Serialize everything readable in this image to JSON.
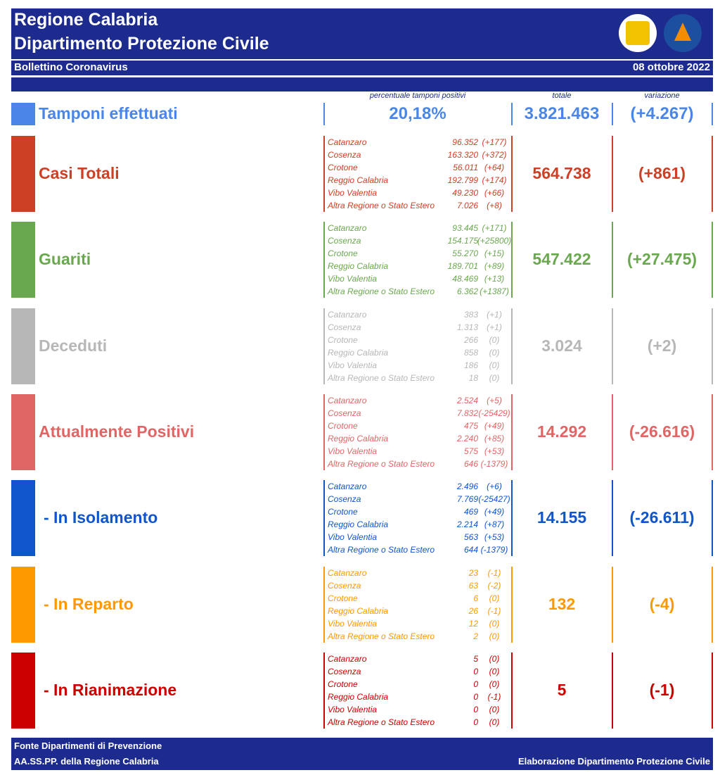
{
  "header": {
    "title_line1": "Regione Calabria",
    "title_line2": "Dipartimento Protezione Civile",
    "subtitle": "Bollettino Coronavirus",
    "date": "08 ottobre 2022"
  },
  "column_headers": {
    "percent": "percentuale tamponi positivi",
    "total": "totale",
    "variation": "variazione"
  },
  "tamponi": {
    "label": "Tamponi effettuati",
    "color": "#4a86e8",
    "percent": "20,18%",
    "total": "3.821.463",
    "variation": "(+4.267)"
  },
  "sections": [
    {
      "label": "Casi Totali",
      "color": "#cc4125",
      "total": "564.738",
      "variation": "(+861)",
      "rows": [
        {
          "name": "Catanzaro",
          "value": "96.352",
          "variation": "(+177)"
        },
        {
          "name": "Cosenza",
          "value": "163.320",
          "variation": "(+372)"
        },
        {
          "name": "Crotone",
          "value": "56.011",
          "variation": "(+64)"
        },
        {
          "name": "Reggio Calabria",
          "value": "192.799",
          "variation": "(+174)"
        },
        {
          "name": "Vibo Valentia",
          "value": "49.230",
          "variation": "(+66)"
        },
        {
          "name": "Altra Regione o Stato Estero",
          "value": "7.026",
          "variation": "(+8)"
        }
      ]
    },
    {
      "label": "Guariti",
      "color": "#6aa84f",
      "total": "547.422",
      "variation": "(+27.475)",
      "rows": [
        {
          "name": "Catanzaro",
          "value": "93.445",
          "variation": "(+171)"
        },
        {
          "name": "Cosenza",
          "value": "154.175",
          "variation": "(+25800)"
        },
        {
          "name": "Crotone",
          "value": "55.270",
          "variation": "(+15)"
        },
        {
          "name": "Reggio Calabria",
          "value": "189.701",
          "variation": "(+89)"
        },
        {
          "name": "Vibo Valentia",
          "value": "48.469",
          "variation": "(+13)"
        },
        {
          "name": "Altra Regione o Stato Estero",
          "value": "6.362",
          "variation": "(+1387)"
        }
      ]
    },
    {
      "label": "Deceduti",
      "color": "#b7b7b7",
      "total": "3.024",
      "variation": "(+2)",
      "rows": [
        {
          "name": "Catanzaro",
          "value": "383",
          "variation": "(+1)"
        },
        {
          "name": "Cosenza",
          "value": "1.313",
          "variation": "(+1)"
        },
        {
          "name": "Crotone",
          "value": "266",
          "variation": "(0)"
        },
        {
          "name": "Reggio Calabria",
          "value": "858",
          "variation": "(0)"
        },
        {
          "name": "Vibo Valentia",
          "value": "186",
          "variation": "(0)"
        },
        {
          "name": "Altra Regione o Stato Estero",
          "value": "18",
          "variation": "(0)"
        }
      ]
    },
    {
      "label": "Attualmente Positivi",
      "color": "#e06666",
      "total": "14.292",
      "variation": "(-26.616)",
      "rows": [
        {
          "name": "Catanzaro",
          "value": "2.524",
          "variation": "(+5)"
        },
        {
          "name": "Cosenza",
          "value": "7.832",
          "variation": "(-25429)"
        },
        {
          "name": "Crotone",
          "value": "475",
          "variation": "(+49)"
        },
        {
          "name": "Reggio Calabria",
          "value": "2.240",
          "variation": "(+85)"
        },
        {
          "name": "Vibo Valentia",
          "value": "575",
          "variation": "(+53)"
        },
        {
          "name": "Altra Regione o Stato Estero",
          "value": "646",
          "variation": "(-1379)"
        }
      ]
    },
    {
      "label": "- In Isolamento",
      "color": "#1155cc",
      "total": "14.155",
      "variation": "(-26.611)",
      "rows": [
        {
          "name": "Catanzaro",
          "value": "2.496",
          "variation": "(+6)"
        },
        {
          "name": "Cosenza",
          "value": "7.769",
          "variation": "(-25427)"
        },
        {
          "name": "Crotone",
          "value": "469",
          "variation": "(+49)"
        },
        {
          "name": "Reggio Calabria",
          "value": "2.214",
          "variation": "(+87)"
        },
        {
          "name": "Vibo Valentia",
          "value": "563",
          "variation": "(+53)"
        },
        {
          "name": "Altra Regione o Stato Estero",
          "value": "644",
          "variation": "(-1379)"
        }
      ]
    },
    {
      "label": "- In Reparto",
      "color": "#ff9900",
      "total": "132",
      "variation": "(-4)",
      "rows": [
        {
          "name": "Catanzaro",
          "value": "23",
          "variation": "(-1)"
        },
        {
          "name": "Cosenza",
          "value": "63",
          "variation": "(-2)"
        },
        {
          "name": "Crotone",
          "value": "6",
          "variation": "(0)"
        },
        {
          "name": "Reggio Calabria",
          "value": "26",
          "variation": "(-1)"
        },
        {
          "name": "Vibo Valentia",
          "value": "12",
          "variation": "(0)"
        },
        {
          "name": "Altra Regione o Stato Estero",
          "value": "2",
          "variation": "(0)"
        }
      ]
    },
    {
      "label": "- In Rianimazione",
      "color": "#cc0000",
      "total": "5",
      "variation": "(-1)",
      "rows": [
        {
          "name": "Catanzaro",
          "value": "5",
          "variation": "(0)"
        },
        {
          "name": "Cosenza",
          "value": "0",
          "variation": "(0)"
        },
        {
          "name": "Crotone",
          "value": "0",
          "variation": "(0)"
        },
        {
          "name": "Reggio Calabria",
          "value": "0",
          "variation": "(-1)"
        },
        {
          "name": "Vibo Valentia",
          "value": "0",
          "variation": "(0)"
        },
        {
          "name": "Altra Regione o Stato Estero",
          "value": "0",
          "variation": "(0)"
        }
      ]
    }
  ],
  "footer": {
    "line1": "Fonte Dipartimenti di Prevenzione",
    "line2": "AA.SS.PP.  della Regione Calabria",
    "credit": "Elaborazione Dipartimento Protezione Civile"
  }
}
